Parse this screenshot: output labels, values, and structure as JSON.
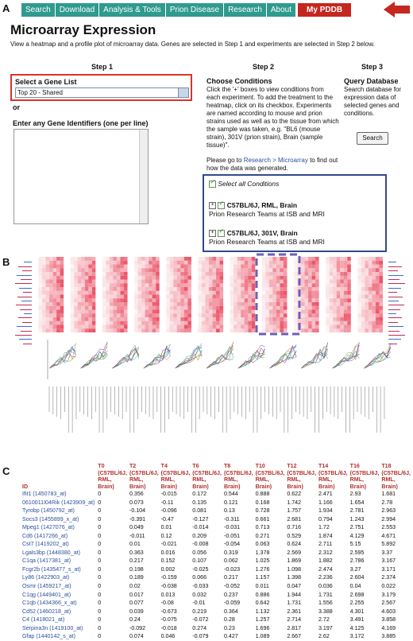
{
  "panel_letters": {
    "a": "A",
    "b": "B",
    "c": "C"
  },
  "nav": {
    "items": [
      "Search",
      "Download",
      "Analysis & Tools",
      "Prion Disease",
      "Research",
      "About"
    ],
    "my_pddb": "My PDDB"
  },
  "page": {
    "title": "Microarray Expression",
    "intro": "View a heatmap and a profile plot of microarray data. Genes are selected in Step 1 and experiments are selected in Step 2 below."
  },
  "step1": {
    "heading": "Step 1",
    "select_label": "Select a Gene List",
    "selected_value": "Top 20 - Shared",
    "or_label": "or",
    "ids_label": "Enter any Gene Identifiers (one per line)"
  },
  "step2": {
    "heading": "Step 2",
    "subheading": "Choose Conditions",
    "text1": "Click the '+' boxes to view conditions from each experiment. To add the treatment to the heatmap, click on its checkbox. Experiments are named according to mouse and prion strains used as well as to the tissue from which the sample was taken, e.g. \"BL6 (mouse strain), 301V (prion strain), Brain (sample tissue)\".",
    "text2_pre": "Please go to ",
    "text2_link": "Research > Microarray",
    "text2_post": " to find out how the data was generated.",
    "select_all": "Select all Conditions",
    "conditions": [
      {
        "name": "C57BL/6J, RML, Brain",
        "team": "Prion Research Teams at ISB and MRI"
      },
      {
        "name": "C57BL/6J, 301V, Brain",
        "team": "Prion Research Teams at ISB and MRI"
      }
    ]
  },
  "step3": {
    "heading": "Step 3",
    "subheading": "Query Database",
    "text": "Search database for expression data of selected genes and conditions.",
    "button": "Search"
  },
  "table": {
    "id_header": "ID",
    "columns": [
      {
        "t": "T0",
        "c": "(C57BL/6J,",
        "r": "RML,",
        "b": "Brain)"
      },
      {
        "t": "T2",
        "c": "(C57BL/6J,",
        "r": "RML,",
        "b": "Brain)"
      },
      {
        "t": "T4",
        "c": "(C57BL/6J,",
        "r": "RML,",
        "b": "Brain)"
      },
      {
        "t": "T6",
        "c": "(C57BL/6J,",
        "r": "RML,",
        "b": "Brain)"
      },
      {
        "t": "T8",
        "c": "(C57BL/6J,",
        "r": "RML,",
        "b": "Brain)"
      },
      {
        "t": "T10",
        "c": "(C57BL/6J,",
        "r": "RML,",
        "b": "Brain)"
      },
      {
        "t": "T12",
        "c": "(C57BL/6J,",
        "r": "RML,",
        "b": "Brain)"
      },
      {
        "t": "T14",
        "c": "(C57BL/6J,",
        "r": "RML,",
        "b": "Brain)"
      },
      {
        "t": "T16",
        "c": "(C57BL/6J,",
        "r": "RML,",
        "b": "Brain)"
      },
      {
        "t": "T18",
        "c": "(C57BL/6J,",
        "r": "RML,",
        "b": "Brain)"
      }
    ],
    "rows": [
      {
        "id": "Ifit1 (1450783_at)",
        "v": [
          "0",
          "0.356",
          "-0.015",
          "0.172",
          "0.544",
          "0.888",
          "0.622",
          "2.471",
          "2.93",
          "1.681"
        ]
      },
      {
        "id": "0610011I04Rik (1423909_at)",
        "v": [
          "0",
          "0.073",
          "-0.11",
          "0.135",
          "0.121",
          "0.168",
          "1.742",
          "1.166",
          "1.654",
          "2.78"
        ]
      },
      {
        "id": "Tyrobp (1450792_at)",
        "v": [
          "0",
          "-0.104",
          "-0.096",
          "0.081",
          "0.13",
          "0.728",
          "1.757",
          "1.934",
          "2.781",
          "2.963"
        ]
      },
      {
        "id": "Socs3 (1455899_x_at)",
        "v": [
          "0",
          "-0.391",
          "-0.47",
          "-0.127",
          "-0.311",
          "0.661",
          "2.681",
          "0.794",
          "1.243",
          "2.994"
        ]
      },
      {
        "id": "Mpeg1 (1427076_at)",
        "v": [
          "0",
          "0.049",
          "0.01",
          "-0.014",
          "-0.031",
          "0.713",
          "0.716",
          "1.72",
          "2.751",
          "2.553"
        ]
      },
      {
        "id": "Cd6 (1417266_at)",
        "v": [
          "0",
          "-0.011",
          "0.12",
          "0.209",
          "-0.051",
          "0.271",
          "0.529",
          "1.874",
          "4.129",
          "4.671"
        ]
      },
      {
        "id": "Cst7 (1419202_at)",
        "v": [
          "0",
          "0.01",
          "-0.021",
          "-0.008",
          "-0.054",
          "0.063",
          "0.624",
          "2.711",
          "5.15",
          "5.892"
        ]
      },
      {
        "id": "Lgals3bp (1448380_at)",
        "v": [
          "0",
          "0.363",
          "0.016",
          "0.056",
          "0.319",
          "1.378",
          "2.569",
          "2.312",
          "2.595",
          "3.37"
        ]
      },
      {
        "id": "C1qa (1417381_at)",
        "v": [
          "0",
          "0.217",
          "0.152",
          "0.107",
          "0.062",
          "1.025",
          "1.869",
          "1.882",
          "2.786",
          "3.167"
        ]
      },
      {
        "id": "Fcgr2b (1435477_s_at)",
        "v": [
          "0",
          "0.198",
          "0.002",
          "-0.025",
          "-0.023",
          "1.276",
          "1.098",
          "2.474",
          "3.27",
          "3.171"
        ]
      },
      {
        "id": "Ly86 (1422903_at)",
        "v": [
          "0",
          "0.189",
          "-0.159",
          "0.066",
          "0.217",
          "1.157",
          "1.398",
          "2.236",
          "2.604",
          "2.374"
        ]
      },
      {
        "id": "Osmr (1459217_at)",
        "v": [
          "0",
          "0.02",
          "-0.038",
          "-0.033",
          "-0.052",
          "0.011",
          "0.047",
          "0.036",
          "0.04",
          "0.022"
        ]
      },
      {
        "id": "C1qg (1449401_at)",
        "v": [
          "0",
          "0.017",
          "0.013",
          "0.032",
          "0.237",
          "0.886",
          "1.944",
          "1.731",
          "2.698",
          "3.179"
        ]
      },
      {
        "id": "C1qb (1434366_x_at)",
        "v": [
          "0",
          "0.077",
          "-0.08",
          "-0.01",
          "-0.059",
          "0.642",
          "1.731",
          "1.556",
          "2.255",
          "2.567"
        ]
      },
      {
        "id": "Cd52 (1460218_at)",
        "v": [
          "0",
          "0.039",
          "-0.673",
          "0.219",
          "0.364",
          "1.132",
          "2.361",
          "3.388",
          "4.301",
          "4.603"
        ]
      },
      {
        "id": "C4 (1418021_at)",
        "v": [
          "0",
          "0.24",
          "-0.075",
          "-0.072",
          "0.28",
          "1.257",
          "2.714",
          "2.72",
          "3.491",
          "3.858"
        ]
      },
      {
        "id": "Serpina3n (1419100_at)",
        "v": [
          "0",
          "-0.092",
          "-0.018",
          "0.274",
          "0.23",
          "1.696",
          "2.817",
          "3.197",
          "4.125",
          "4.169"
        ]
      },
      {
        "id": "Gfap (1440142_s_at)",
        "v": [
          "0",
          "0.074",
          "0.046",
          "-0.079",
          "0.427",
          "1.089",
          "2.667",
          "2.62",
          "3.172",
          "3.885"
        ]
      }
    ]
  },
  "colors": {
    "nav": "#2f9a8e",
    "accent": "#c4271f",
    "heat": "#e8384f",
    "link": "#2d4f9e",
    "highlight": "#6a5fb8"
  }
}
